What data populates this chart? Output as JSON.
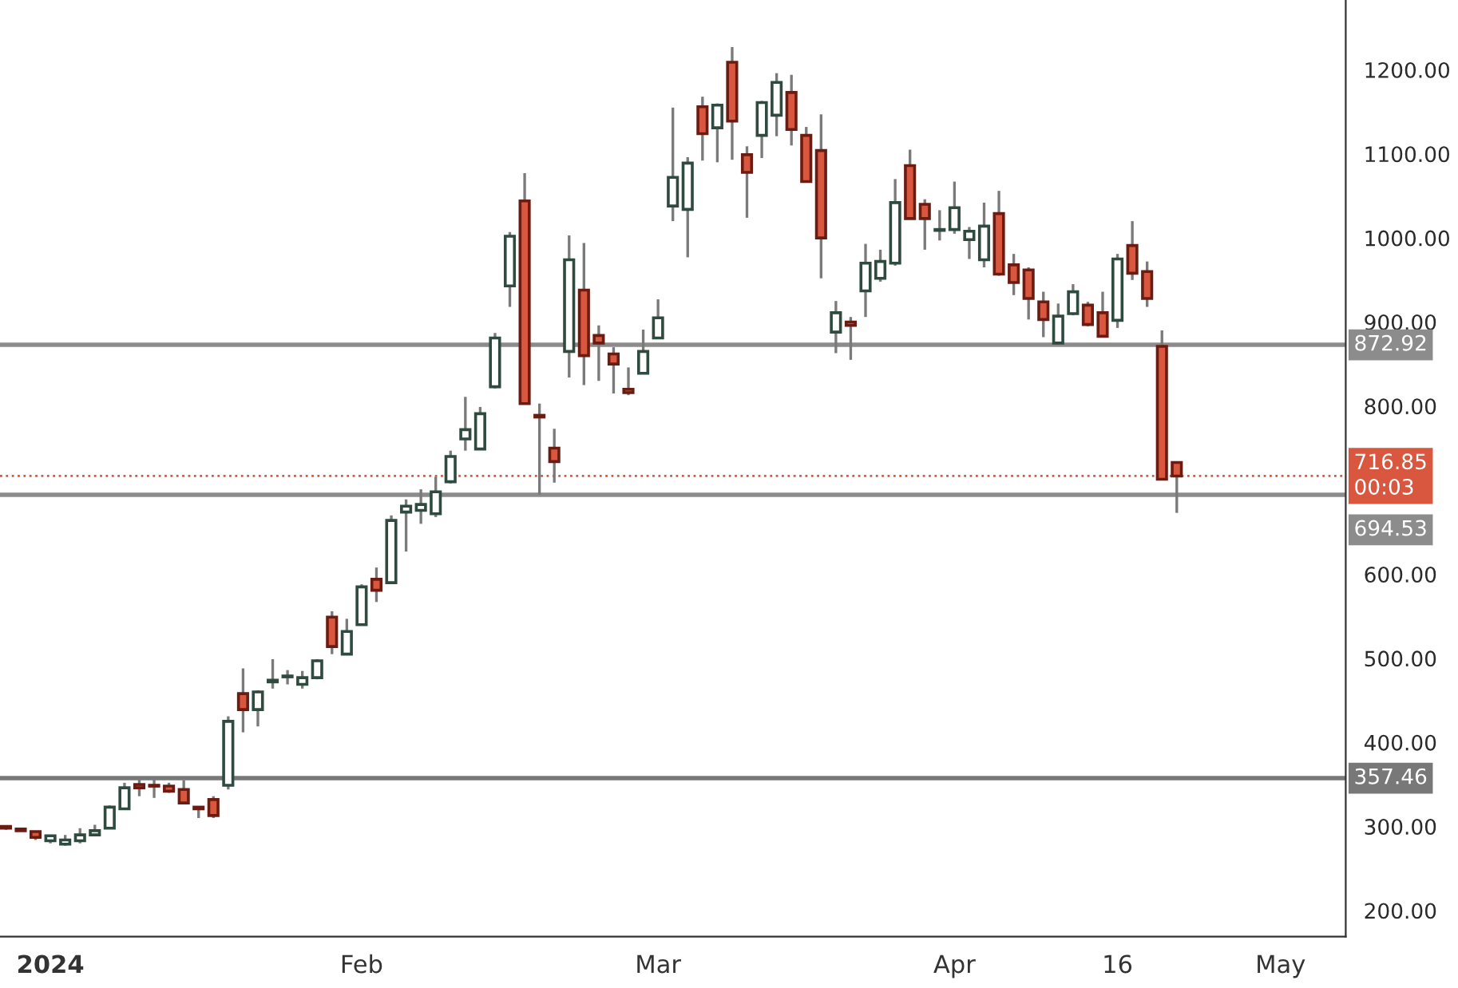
{
  "chart_data": {
    "type": "candlestick",
    "categories": [
      null,
      null,
      null,
      "2024",
      null,
      null,
      null,
      null,
      null,
      null,
      null,
      null,
      null,
      null,
      null,
      null,
      null,
      null,
      null,
      null,
      null,
      null,
      null,
      null,
      "Feb",
      null,
      null,
      null,
      null,
      null,
      null,
      null,
      null,
      null,
      null,
      null,
      null,
      null,
      null,
      null,
      null,
      null,
      null,
      null,
      "Mar",
      null,
      null,
      null,
      null,
      null,
      null,
      null,
      null,
      null,
      null,
      null,
      null,
      null,
      null,
      null,
      null,
      null,
      null,
      null,
      "Apr",
      null,
      null,
      null,
      null,
      null,
      null,
      null,
      null,
      null,
      null,
      "16",
      null,
      null,
      null,
      null,
      null,
      null,
      null,
      null,
      null,
      null,
      "May",
      null,
      null,
      null,
      null
    ],
    "ohlc": [
      [
        300,
        301,
        296,
        298
      ],
      [
        297,
        298,
        294,
        295
      ],
      [
        294,
        295,
        284,
        287
      ],
      [
        283,
        290,
        280,
        289
      ],
      [
        279,
        290,
        277,
        284
      ],
      [
        283,
        298,
        280,
        290
      ],
      [
        290,
        302,
        289,
        295
      ],
      [
        298,
        325,
        297,
        323
      ],
      [
        321,
        352,
        320,
        346
      ],
      [
        350,
        358,
        336,
        346
      ],
      [
        349,
        356,
        334,
        348
      ],
      [
        348,
        352,
        340,
        342
      ],
      [
        344,
        355,
        327,
        328
      ],
      [
        323,
        324,
        310,
        321
      ],
      [
        332,
        336,
        310,
        313
      ],
      [
        349,
        431,
        344,
        425
      ],
      [
        458,
        488,
        412,
        439
      ],
      [
        439,
        462,
        419,
        460
      ],
      [
        472,
        499,
        464,
        474
      ],
      [
        478,
        486,
        469,
        479
      ],
      [
        469,
        485,
        464,
        477
      ],
      [
        477,
        499,
        475,
        497
      ],
      [
        549,
        556,
        505,
        514
      ],
      [
        505,
        547,
        504,
        532
      ],
      [
        540,
        588,
        539,
        585
      ],
      [
        594,
        608,
        567,
        581
      ],
      [
        590,
        670,
        589,
        664
      ],
      [
        674,
        689,
        627,
        681
      ],
      [
        676,
        701,
        660,
        683
      ],
      [
        672,
        716,
        668,
        698
      ],
      [
        710,
        747,
        708,
        740
      ],
      [
        761,
        811,
        747,
        772
      ],
      [
        749,
        799,
        748,
        791
      ],
      [
        823,
        887,
        821,
        881
      ],
      [
        943,
        1007,
        918,
        1002
      ],
      [
        1044,
        1077,
        802,
        803
      ],
      [
        789,
        803,
        694.5,
        787
      ],
      [
        750,
        773,
        709,
        734
      ],
      [
        865,
        1003,
        834,
        974
      ],
      [
        938,
        994,
        825,
        860
      ],
      [
        884,
        896,
        830,
        875
      ],
      [
        862,
        870,
        815,
        850
      ],
      [
        820,
        846,
        813,
        816
      ],
      [
        839,
        891,
        838,
        865
      ],
      [
        881,
        927,
        880,
        905
      ],
      [
        1038,
        1155,
        1020,
        1072
      ],
      [
        1034,
        1096,
        977,
        1089
      ],
      [
        1156,
        1168,
        1092,
        1124
      ],
      [
        1131,
        1160,
        1090,
        1158
      ],
      [
        1209,
        1227,
        1093,
        1139
      ],
      [
        1099,
        1109,
        1024,
        1078
      ],
      [
        1122,
        1163,
        1095,
        1161
      ],
      [
        1146,
        1196,
        1121,
        1185
      ],
      [
        1173,
        1194,
        1110,
        1129
      ],
      [
        1122,
        1132,
        1066,
        1067
      ],
      [
        1104,
        1147,
        952,
        1000
      ],
      [
        888,
        925,
        863,
        911
      ],
      [
        900,
        906,
        855,
        896
      ],
      [
        937,
        993,
        906,
        970
      ],
      [
        952,
        986,
        948,
        972
      ],
      [
        970,
        1070,
        967,
        1042
      ],
      [
        1086,
        1105,
        1022,
        1023
      ],
      [
        1040,
        1046,
        986,
        1023
      ],
      [
        1009,
        1033,
        997,
        1010
      ],
      [
        1010,
        1067,
        1005,
        1036
      ],
      [
        998,
        1013,
        975,
        1008
      ],
      [
        974,
        1042,
        965,
        1014
      ],
      [
        1029,
        1056,
        955,
        957
      ],
      [
        968,
        981,
        932,
        947
      ],
      [
        962,
        965,
        903,
        928
      ],
      [
        924,
        936,
        882,
        903
      ],
      [
        875,
        922,
        873,
        907
      ],
      [
        910,
        945,
        908,
        936
      ],
      [
        920,
        924,
        895,
        897
      ],
      [
        911,
        936,
        882,
        883
      ],
      [
        902,
        981,
        893,
        975
      ],
      [
        991,
        1020,
        950,
        958
      ],
      [
        960,
        972,
        918,
        928
      ],
      [
        871,
        890,
        712,
        713
      ],
      [
        733,
        734,
        673,
        716.85
      ],
      null,
      null,
      null,
      null,
      null,
      null,
      null,
      null,
      null,
      null,
      null
    ],
    "ylim": [
      169,
      1283
    ],
    "yticks": [
      {
        "value": 200,
        "label": "200.00"
      },
      {
        "value": 300,
        "label": "300.00"
      },
      {
        "value": 400,
        "label": "400.00"
      },
      {
        "value": 500,
        "label": "500.00"
      },
      {
        "value": 600,
        "label": "600.00"
      },
      {
        "value": 800,
        "label": "800.00"
      },
      {
        "value": 900,
        "label": "900.00"
      },
      {
        "value": 1000,
        "label": "1000.00"
      },
      {
        "value": 1100,
        "label": "1100.00"
      },
      {
        "value": 1200,
        "label": "1200.00"
      }
    ],
    "ref_lines": [
      {
        "axis": "y",
        "value": 872.92,
        "label": "872.92",
        "color": "#8c8c8c",
        "line_style": "solid"
      },
      {
        "axis": "y",
        "value": 694.53,
        "label": "694.53",
        "color": "#8c8c8c",
        "line_style": "solid"
      },
      {
        "axis": "y",
        "value": 357.46,
        "label": "357.46",
        "color": "#787878",
        "line_style": "solid"
      },
      {
        "axis": "y",
        "value": 716.85,
        "label": "716.85\n00:03",
        "color": "#d9573f",
        "line_style": "dotted"
      }
    ],
    "grid": false,
    "legend": false
  }
}
